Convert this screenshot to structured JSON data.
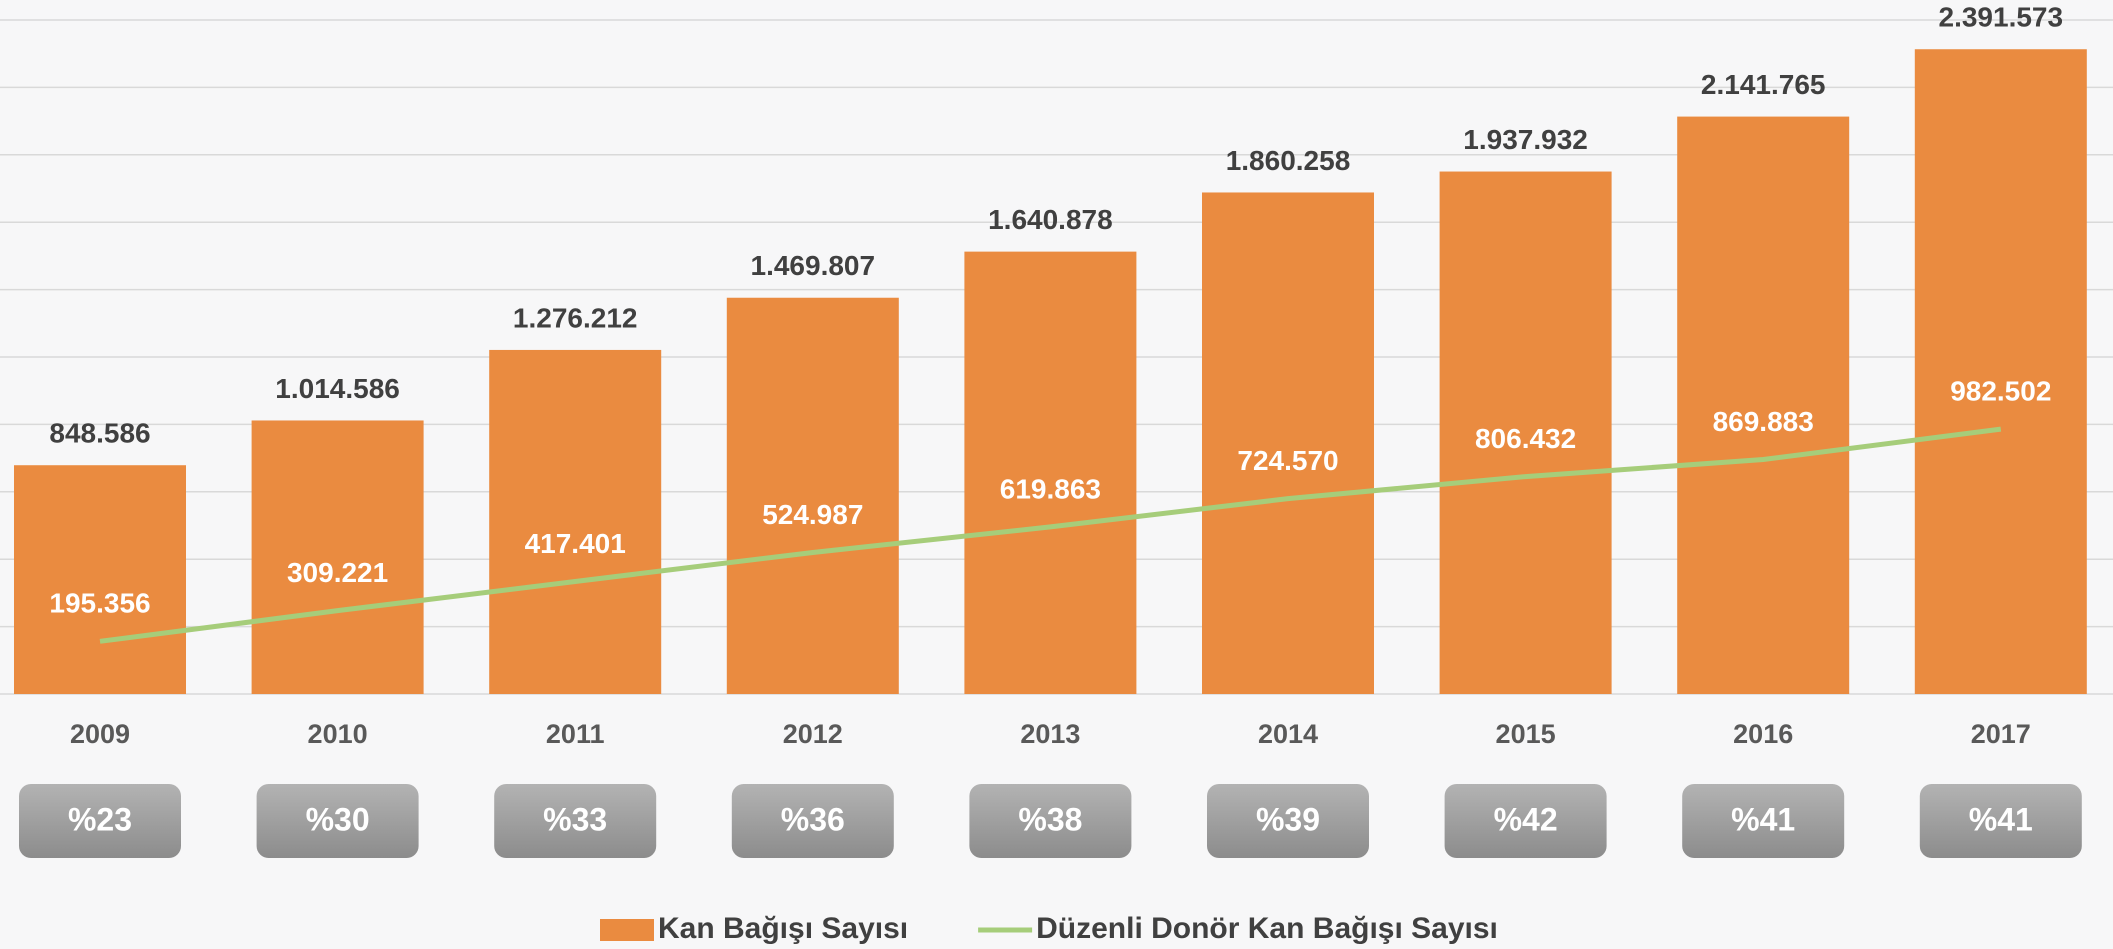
{
  "chart_data": {
    "type": "bar",
    "categories": [
      "2009",
      "2010",
      "2011",
      "2012",
      "2013",
      "2014",
      "2015",
      "2016",
      "2017"
    ],
    "ylim": [
      0,
      2500000
    ],
    "yticks": [
      0,
      250000,
      500000,
      750000,
      1000000,
      1250000,
      1500000,
      1750000,
      2000000,
      2250000,
      2500000
    ],
    "grid": true,
    "legend": "bottom",
    "series": [
      {
        "name": "Kan Bağışı Sayısı",
        "type": "bar",
        "color": "#ea8b40",
        "values": [
          848586,
          1014586,
          1276212,
          1469807,
          1640878,
          1860258,
          1937932,
          2141765,
          2391573
        ],
        "value_labels": [
          "848.586",
          "1.014.586",
          "1.276.212",
          "1.469.807",
          "1.640.878",
          "1.860.258",
          "1.937.932",
          "2.141.765",
          "2.391.573"
        ]
      },
      {
        "name": "Düzenli Donör Kan Bağışı Sayısı",
        "type": "line",
        "color": "#a6cd7a",
        "values": [
          195356,
          309221,
          417401,
          524987,
          619863,
          724570,
          806432,
          869883,
          982502
        ],
        "value_labels": [
          "195.356",
          "309.221",
          "417.401",
          "524.987",
          "619.863",
          "724.570",
          "806.432",
          "869.883",
          "982.502"
        ]
      }
    ],
    "ratio_labels": [
      "%23",
      "%30",
      "%33",
      "%36",
      "%38",
      "%39",
      "%42",
      "%41",
      "%41"
    ]
  }
}
